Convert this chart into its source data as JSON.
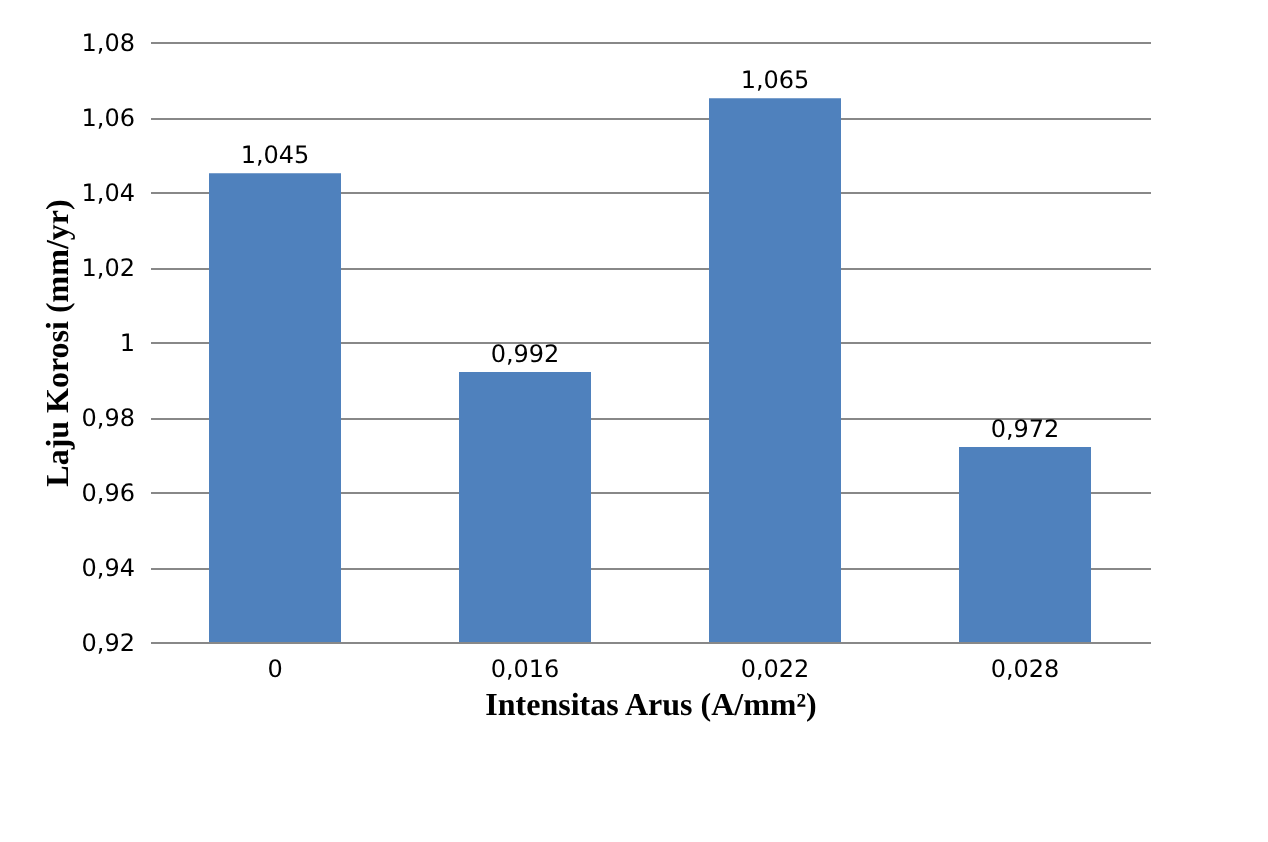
{
  "chart_data": {
    "type": "bar",
    "xlabel": "Intensitas Arus (A/mm²)",
    "ylabel": "Laju Korosi (mm/yr)",
    "categories": [
      "0",
      "0,016",
      "0,022",
      "0,028"
    ],
    "values": [
      1.045,
      0.992,
      1.065,
      0.972
    ],
    "value_labels": [
      "1,045",
      "0,992",
      "1,065",
      "0,972"
    ],
    "color": "#4f81bd",
    "ylim": [
      0.92,
      1.08
    ],
    "yticks": [
      {
        "value": 0.92,
        "label": "0,92"
      },
      {
        "value": 0.94,
        "label": "0,94"
      },
      {
        "value": 0.96,
        "label": "0,96"
      },
      {
        "value": 0.98,
        "label": "0,98"
      },
      {
        "value": 1,
        "label": "1"
      },
      {
        "value": 1.02,
        "label": "1,02"
      },
      {
        "value": 1.04,
        "label": "1,04"
      },
      {
        "value": 1.06,
        "label": "1,06"
      },
      {
        "value": 1.08,
        "label": "1,08"
      }
    ],
    "grid": "y"
  }
}
